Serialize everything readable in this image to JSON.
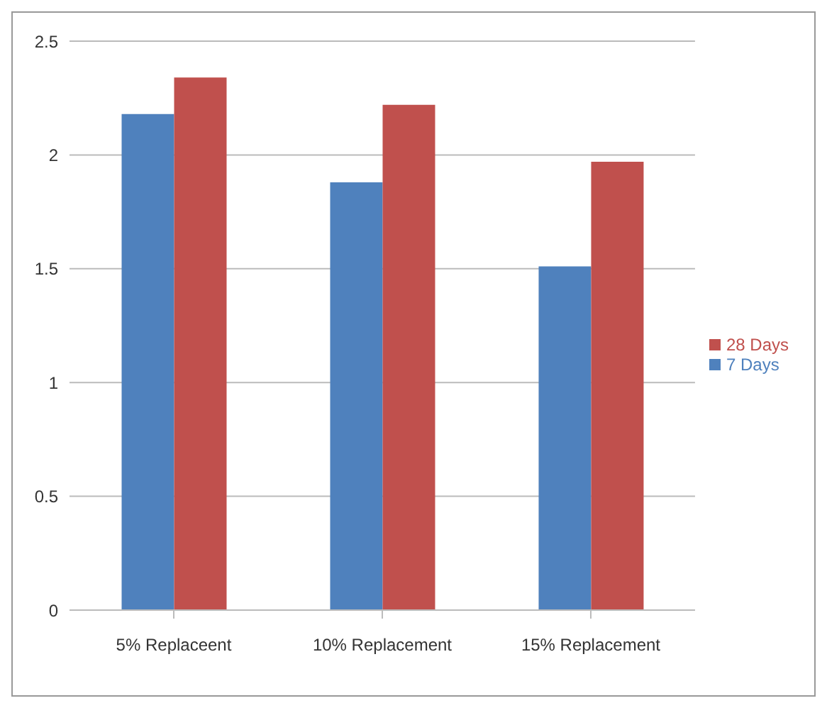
{
  "chart_data": {
    "type": "bar",
    "categories": [
      "5% Replaceent",
      "10% Replacement",
      "15% Replacement"
    ],
    "series": [
      {
        "name": "7 Days",
        "color": "#4f81bd",
        "values": [
          2.18,
          1.88,
          1.51
        ]
      },
      {
        "name": "28 Days",
        "color": "#c0504d",
        "values": [
          2.34,
          2.22,
          1.97
        ]
      }
    ],
    "ylim": [
      0,
      2.5
    ],
    "yticks": [
      0,
      0.5,
      1,
      1.5,
      2,
      2.5
    ],
    "grid": "y",
    "legend": "right"
  }
}
